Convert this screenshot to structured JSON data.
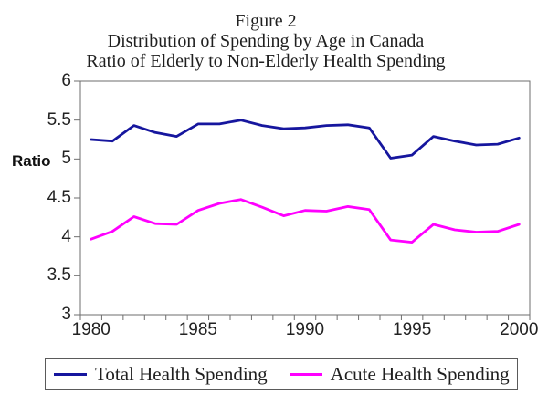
{
  "chart_data": {
    "type": "line",
    "title_lines": [
      "Figure 2",
      "Distribution of Spending by Age in Canada",
      "Ratio of Elderly to Non-Elderly Health Spending"
    ],
    "ylabel": "Ratio",
    "x": [
      1980,
      1981,
      1982,
      1983,
      1984,
      1985,
      1986,
      1987,
      1988,
      1989,
      1990,
      1991,
      1992,
      1993,
      1994,
      1995,
      1996,
      1997,
      1998,
      1999,
      2000
    ],
    "series": [
      {
        "name": "Total Health Spending",
        "color": "#16169e",
        "values": [
          5.25,
          5.23,
          5.43,
          5.34,
          5.29,
          5.45,
          5.45,
          5.5,
          5.43,
          5.39,
          5.4,
          5.43,
          5.44,
          5.4,
          5.01,
          5.05,
          5.29,
          5.23,
          5.18,
          5.19,
          5.27
        ]
      },
      {
        "name": "Acute Health Spending",
        "color": "#ff00ff",
        "values": [
          3.97,
          4.07,
          4.26,
          4.17,
          4.16,
          4.34,
          4.43,
          4.48,
          4.38,
          4.27,
          4.34,
          4.33,
          4.39,
          4.35,
          3.96,
          3.93,
          4.16,
          4.09,
          4.06,
          4.07,
          4.16
        ]
      }
    ],
    "ylim": [
      3,
      6
    ],
    "ytick_step": 0.5,
    "ytick_labels": [
      "6",
      "5.5",
      "5",
      "4.5",
      "4",
      "3.5",
      "3"
    ],
    "xtick_labels": [
      "1980",
      "1985",
      "1990",
      "1995",
      "2000"
    ],
    "grid": false,
    "legend_position": "bottom",
    "axis_color": "#6e6e6e",
    "background_color": "#ffffff"
  }
}
